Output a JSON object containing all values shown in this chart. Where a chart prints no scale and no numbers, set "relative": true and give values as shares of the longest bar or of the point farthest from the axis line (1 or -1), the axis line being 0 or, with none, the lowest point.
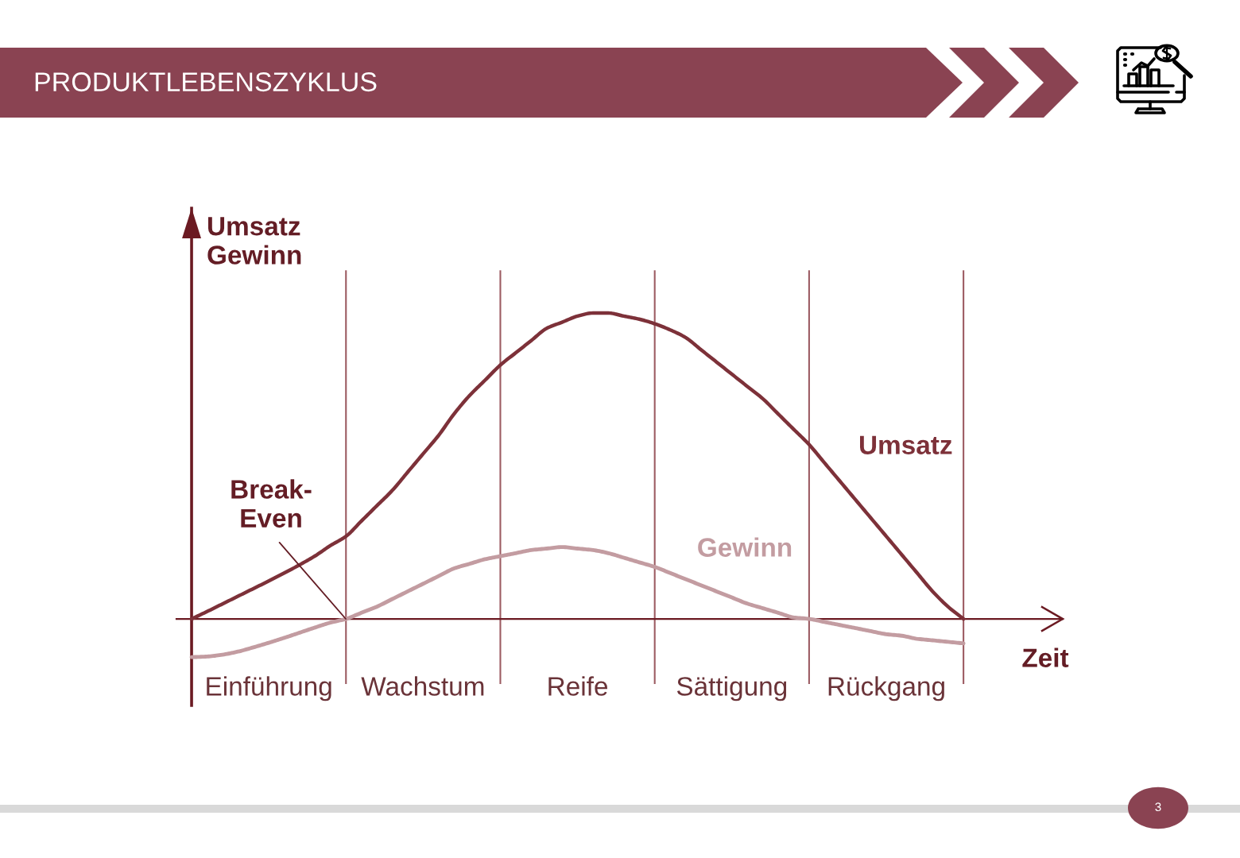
{
  "chart_data": {
    "type": "line",
    "title": "PRODUKTLEBENSZYKLUS",
    "xlabel": "Zeit",
    "ylabel": "Umsatz\nGewinn",
    "relative": true,
    "tick_labels": "x",
    "line_style": "solid",
    "grid": "x",
    "categories": [
      null,
      null,
      null,
      null,
      null,
      "Einführung",
      null,
      null,
      null,
      null,
      null,
      null,
      null,
      null,
      null,
      "Wachstum",
      null,
      null,
      null,
      null,
      null,
      null,
      null,
      null,
      null,
      "Reife",
      null,
      null,
      null,
      null,
      null,
      null,
      null,
      null,
      null,
      "Sättigung",
      null,
      null,
      null,
      null,
      null,
      null,
      null,
      null,
      null,
      "Rückgang",
      null,
      null,
      null,
      null,
      null
    ],
    "series": [
      {
        "name": "Umsatz",
        "color": "#7d3139",
        "values": [
          0,
          0.024,
          0.049,
          0.074,
          0.099,
          0.124,
          0.15,
          0.177,
          0.206,
          0.24,
          0.27,
          0.32,
          0.37,
          0.42,
          0.48,
          0.54,
          0.6,
          0.67,
          0.73,
          0.78,
          0.83,
          0.87,
          0.91,
          0.95,
          0.97,
          0.99,
          1.0,
          1.0,
          0.99,
          0.98,
          0.965,
          0.945,
          0.92,
          0.88,
          0.84,
          0.8,
          0.76,
          0.72,
          0.67,
          0.62,
          0.57,
          0.51,
          0.45,
          0.39,
          0.33,
          0.27,
          0.21,
          0.15,
          0.09,
          0.04,
          0
        ]
      },
      {
        "name": "Gewinn",
        "color": "#c39ca1",
        "values": [
          -0.125,
          -0.123,
          -0.117,
          -0.107,
          -0.093,
          -0.078,
          -0.062,
          -0.045,
          -0.028,
          -0.012,
          0,
          0.02,
          0.04,
          0.065,
          0.09,
          0.115,
          0.14,
          0.165,
          0.18,
          0.195,
          0.205,
          0.215,
          0.225,
          0.23,
          0.235,
          0.23,
          0.225,
          0.215,
          0.2,
          0.185,
          0.17,
          0.15,
          0.13,
          0.11,
          0.09,
          0.07,
          0.05,
          0.035,
          0.02,
          0.005,
          0,
          -0.01,
          -0.02,
          -0.03,
          -0.04,
          -0.05,
          -0.055,
          -0.065,
          -0.07,
          -0.075,
          -0.08
        ]
      }
    ],
    "annotations": [
      "Break-\nEven",
      "3"
    ]
  }
}
